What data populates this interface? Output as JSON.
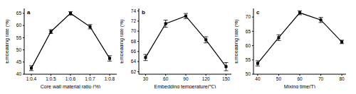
{
  "chart_data": [
    {
      "type": "line",
      "title": "a",
      "x_label": "Core wall material ratio  (%)",
      "y_label": "Embedding rate (%)",
      "categories": [
        "1:0.4",
        "1:0.5",
        "1:0.6",
        "1:0.7",
        "1:0.8"
      ],
      "values": [
        42.5,
        57.5,
        65,
        59.5,
        46.5
      ],
      "errors": [
        1,
        0.8,
        0.7,
        0.9,
        1.1
      ],
      "ylim": [
        40,
        67
      ],
      "yticks": [
        40,
        45,
        50,
        55,
        60,
        65
      ],
      "color": "#000000",
      "marker": "square"
    },
    {
      "type": "line",
      "title": "b",
      "x_label": "Embedding temperature(℃)",
      "y_label": "Embedding rate (%)",
      "x": [
        30,
        60,
        90,
        120,
        150
      ],
      "values": [
        64.8,
        71.5,
        73,
        68.3,
        63
      ],
      "errors": [
        0.6,
        0.7,
        0.5,
        0.6,
        0.8
      ],
      "xlim": [
        20,
        158
      ],
      "xticks": [
        30,
        60,
        90,
        120,
        150
      ],
      "ylim": [
        61.5,
        74.5
      ],
      "yticks": [
        62,
        64,
        66,
        68,
        70,
        72,
        74
      ],
      "color": "#000000",
      "marker": "square"
    },
    {
      "type": "line",
      "title": "c",
      "x_label": "Mixing time(T)",
      "y_label": "Embedding rate (%)",
      "x": [
        40,
        50,
        60,
        70,
        80
      ],
      "values": [
        53.8,
        62.8,
        71.5,
        69,
        61.3
      ],
      "errors": [
        0.9,
        1,
        0.7,
        0.9,
        0.6
      ],
      "xlim": [
        38,
        82
      ],
      "xticks": [
        40,
        50,
        60,
        70,
        80
      ],
      "ylim": [
        50,
        73
      ],
      "yticks": [
        50,
        55,
        60,
        65,
        70
      ],
      "color": "#000000",
      "marker": "square"
    }
  ]
}
